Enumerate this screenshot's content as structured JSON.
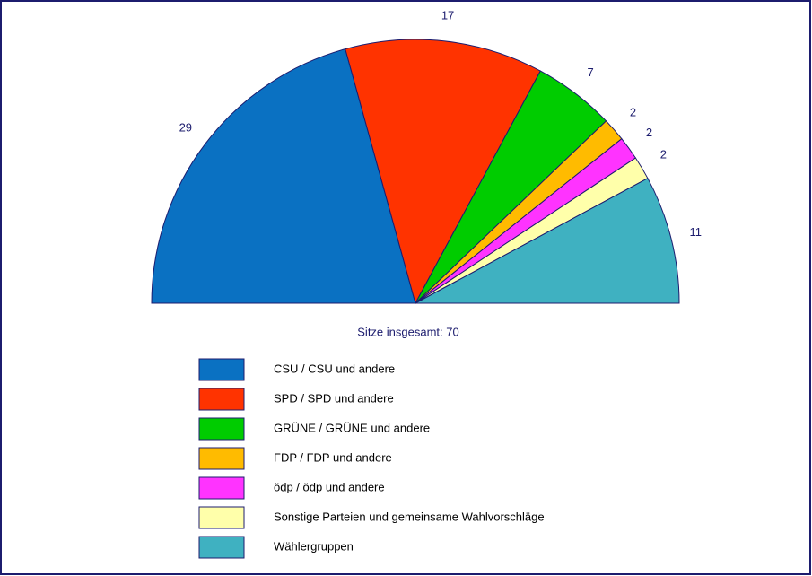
{
  "chart_data": {
    "type": "semicircle-pie",
    "subtitle": "Sitze insgesamt: 70",
    "categories": [
      "CSU / CSU und andere",
      "SPD / SPD und andere",
      "GRÜNE / GRÜNE und andere",
      "FDP / FDP und andere",
      "ödp / ödp und andere",
      "Sonstige Parteien und gemeinsame Wahlvorschläge",
      "Wählergruppen"
    ],
    "values": [
      29,
      17,
      7,
      2,
      2,
      2,
      11
    ],
    "colors": [
      "#0a71c2",
      "#ff3300",
      "#00cc00",
      "#ffbb00",
      "#ff33ff",
      "#ffffaa",
      "#3fb1c1"
    ],
    "legend": "bottom"
  }
}
